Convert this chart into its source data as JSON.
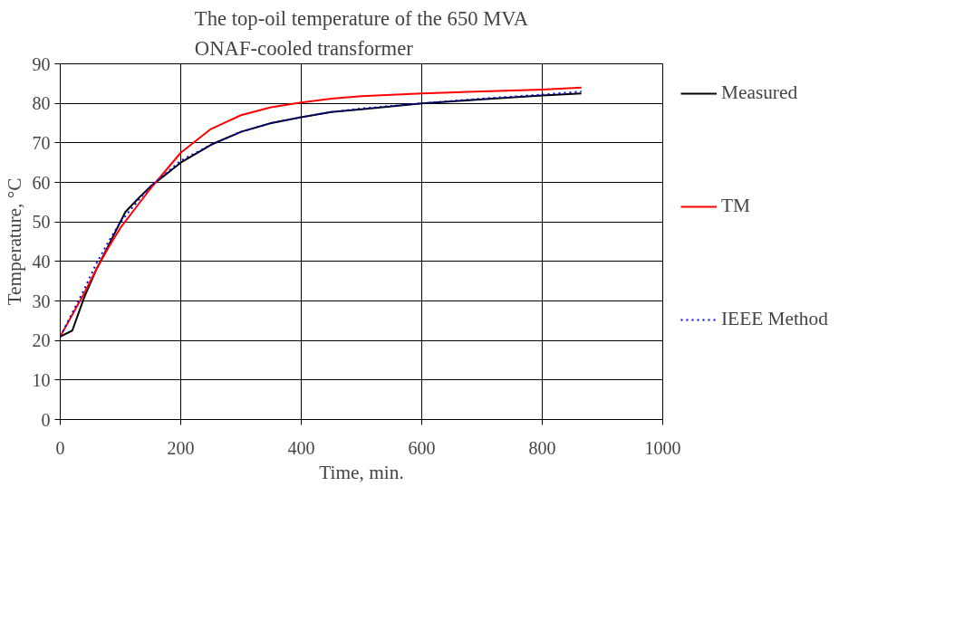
{
  "chart_data": {
    "type": "line",
    "title": "The top-oil temperature of the 650 MVA\nONAF-cooled transformer",
    "xlabel": "Time, min.",
    "ylabel": "Temperature, °C",
    "xlim": [
      0,
      1000
    ],
    "xticks": [
      0,
      200,
      400,
      600,
      800,
      1000
    ],
    "ylim": [
      0,
      90
    ],
    "yticks": [
      0,
      10,
      20,
      30,
      40,
      50,
      60,
      70,
      80,
      90
    ],
    "grid": true,
    "legend": "right",
    "marker": "none",
    "series": [
      {
        "name": "Measured",
        "color": "#000000",
        "line_style": "solid",
        "x": [
          0,
          20,
          40,
          60,
          80,
          108,
          130,
          150,
          200,
          250,
          300,
          350,
          400,
          450,
          500,
          600,
          700,
          800,
          865
        ],
        "values": [
          21,
          22.5,
          31,
          38,
          44,
          52.5,
          56,
          59,
          65,
          69.5,
          72.8,
          75,
          76.5,
          77.8,
          78.5,
          80,
          81,
          82,
          82.5
        ]
      },
      {
        "name": "TM",
        "color": "#ff0000",
        "line_style": "solid",
        "x": [
          0,
          20,
          40,
          60,
          80,
          100,
          130,
          150,
          200,
          250,
          300,
          350,
          400,
          450,
          500,
          600,
          700,
          800,
          865
        ],
        "values": [
          21,
          26.5,
          32,
          38,
          43.5,
          48.5,
          54.5,
          58.5,
          67.5,
          73.5,
          77,
          79,
          80.2,
          81.2,
          81.8,
          82.5,
          83,
          83.5,
          84
        ]
      },
      {
        "name": "IEEE Method",
        "color": "#0000ff",
        "line_style": "dotted",
        "x": [
          0,
          20,
          40,
          60,
          80,
          100,
          130,
          150,
          200,
          250,
          300,
          350,
          400,
          450,
          500,
          600,
          700,
          800,
          865
        ],
        "values": [
          21,
          27,
          33,
          39.5,
          45,
          50,
          55.5,
          59,
          65.5,
          69.5,
          72.8,
          75,
          76.5,
          77.8,
          78.7,
          80,
          81.2,
          82.2,
          83
        ]
      }
    ]
  }
}
